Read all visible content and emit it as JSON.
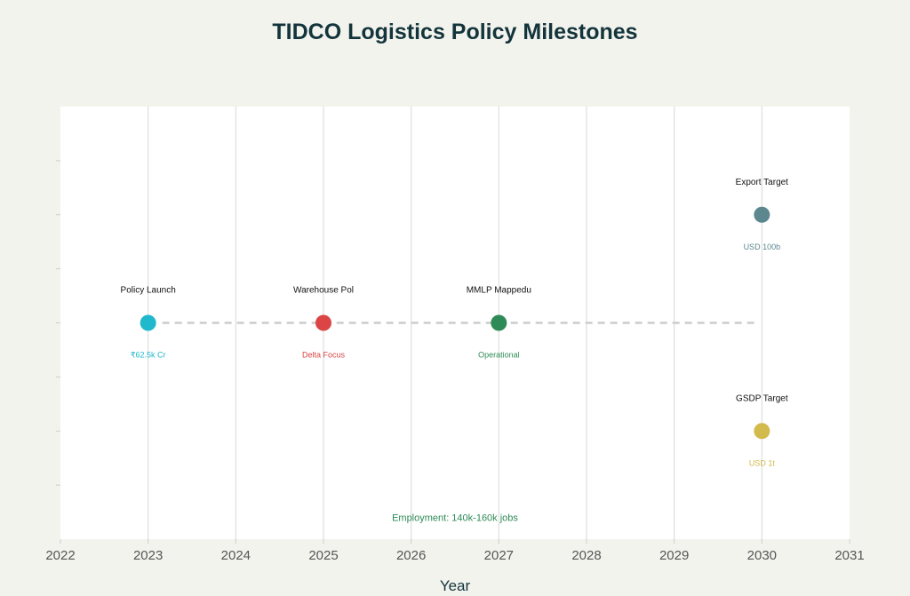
{
  "chart_data": {
    "type": "scatter",
    "title": "TIDCO Logistics Policy Milestones",
    "xlabel": "Year",
    "ylabel": "",
    "xlim": [
      2022,
      2031
    ],
    "x_ticks": [
      "2022",
      "2023",
      "2024",
      "2025",
      "2026",
      "2027",
      "2028",
      "2029",
      "2030",
      "2031"
    ],
    "ylim": [
      -1.6,
      1.6
    ],
    "grid": true,
    "legend": "none",
    "events": [
      {
        "label": "Policy Launch",
        "sublabel": "₹62.5k Cr",
        "x": 2023,
        "y": 0,
        "color": "#1fb8cd"
      },
      {
        "label": "Warehouse Pol",
        "sublabel": "Delta Focus",
        "x": 2025,
        "y": 0,
        "color": "#db4545"
      },
      {
        "label": "MMLP Mappedu",
        "sublabel": "Operational",
        "x": 2027,
        "y": 0,
        "color": "#2e8b57"
      },
      {
        "label": "Export Target",
        "sublabel": "USD 100b",
        "x": 2030,
        "y": 0.8,
        "color": "#5d878f"
      },
      {
        "label": "GSDP Target",
        "sublabel": "USD 1t",
        "x": 2030,
        "y": -0.8,
        "color": "#d2ba4c"
      }
    ],
    "connector": {
      "x": [
        2023,
        2030
      ],
      "y": 0,
      "style": "dashed",
      "color": "#cccccc"
    },
    "annotations": [
      {
        "text": "Employment: 140k-160k jobs",
        "x": 2026.5,
        "y": -1.44,
        "color": "#2e8b57"
      }
    ]
  }
}
